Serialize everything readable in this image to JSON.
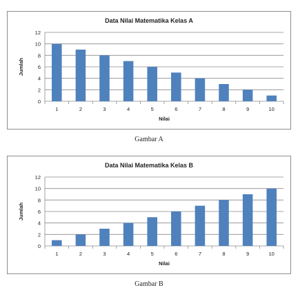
{
  "chart_data": [
    {
      "type": "bar",
      "title": "Data Nilai Matematika Kelas A",
      "xlabel": "Nilai",
      "ylabel": "Jumlah",
      "categories": [
        "1",
        "2",
        "3",
        "4",
        "5",
        "6",
        "7",
        "8",
        "9",
        "10"
      ],
      "values": [
        10,
        9,
        8,
        7,
        6,
        5,
        4,
        3,
        2,
        1
      ],
      "ylim": [
        0,
        12
      ],
      "yticks": [
        "0",
        "2",
        "4",
        "6",
        "8",
        "10",
        "12"
      ],
      "grid": true,
      "bar_color": "#4f81bd",
      "caption": "Gambar A"
    },
    {
      "type": "bar",
      "title": "Data Nilai Matematika Kelas B",
      "xlabel": "Nilai",
      "ylabel": "Jumlah",
      "categories": [
        "1",
        "2",
        "3",
        "4",
        "5",
        "6",
        "7",
        "8",
        "9",
        "10"
      ],
      "values": [
        1,
        2,
        3,
        4,
        5,
        6,
        7,
        8,
        9,
        10
      ],
      "ylim": [
        0,
        12
      ],
      "yticks": [
        "0",
        "2",
        "4",
        "6",
        "8",
        "10",
        "12"
      ],
      "grid": true,
      "bar_color": "#4f81bd",
      "caption": "Gambar B"
    }
  ]
}
